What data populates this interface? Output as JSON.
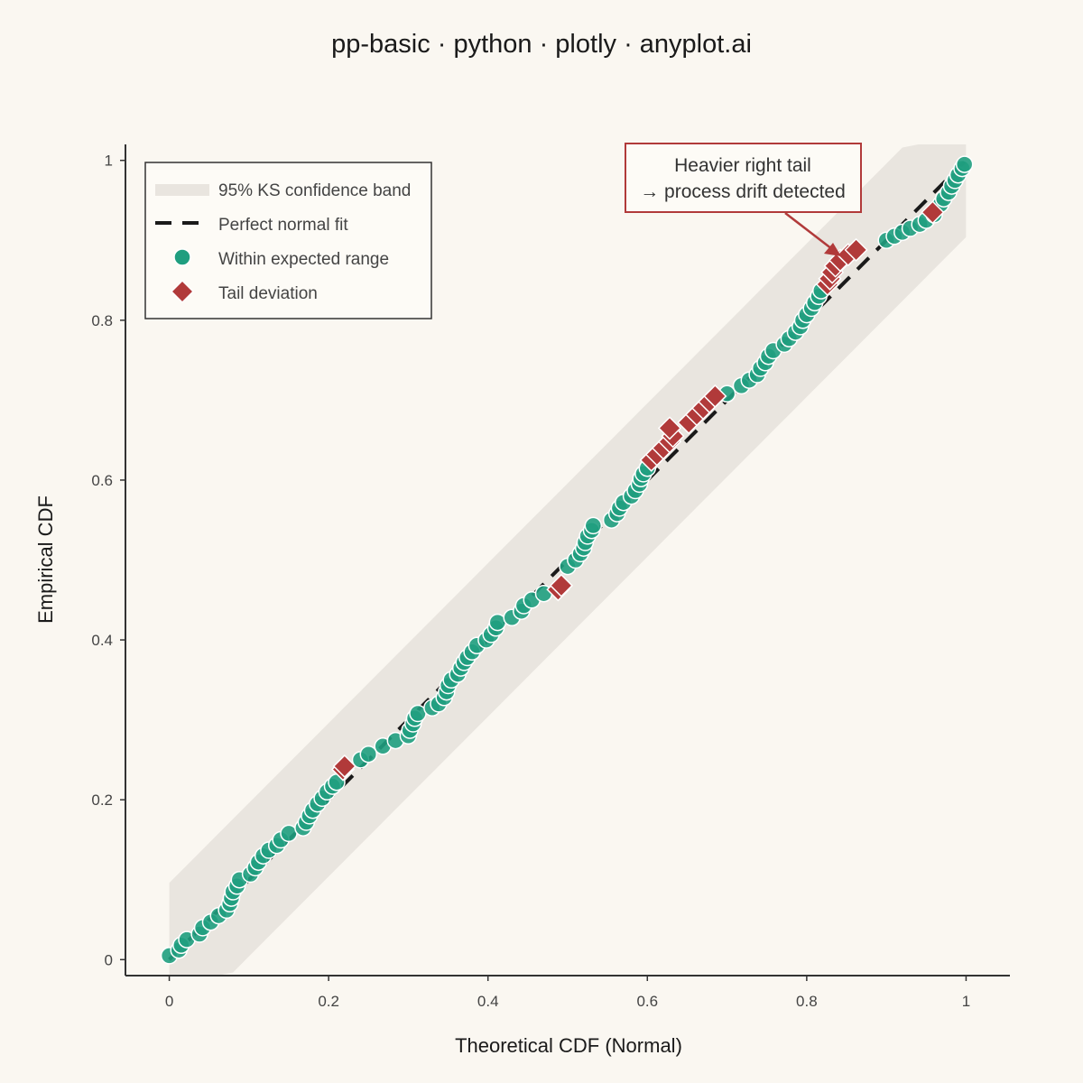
{
  "title": "pp-basic · python · plotly · anyplot.ai",
  "colors": {
    "background": "#faf7f1",
    "band": "#e9e5df",
    "within": "#1f9e7f",
    "tail": "#b13a3a",
    "fit_line": "#1a1a1a",
    "axis": "#333333"
  },
  "legend": {
    "band_label": "95% KS confidence band",
    "fit_label": "Perfect normal fit",
    "within_label": "Within expected range",
    "tail_label": "Tail deviation",
    "placement": "top-left"
  },
  "annotation": {
    "line1": "Heavier right tail",
    "line2": "→ process drift detected"
  },
  "chart_data": {
    "type": "scatter",
    "title": "pp-basic · python · plotly · anyplot.ai",
    "xlabel": "Theoretical CDF (Normal)",
    "ylabel": "Empirical CDF",
    "xlim": [
      -0.055,
      1.055
    ],
    "ylim": [
      -0.02,
      1.02
    ],
    "x_ticks": [
      0,
      0.2,
      0.4,
      0.6,
      0.8,
      1
    ],
    "y_ticks": [
      0,
      0.2,
      0.4,
      0.6,
      0.8,
      1
    ],
    "x_tick_labels": [
      "0",
      "0.2",
      "0.4",
      "0.6",
      "0.8",
      "1"
    ],
    "y_tick_labels": [
      "0",
      "0.2",
      "0.4",
      "0.6",
      "0.8",
      "1"
    ],
    "grid": false,
    "ks_band_halfwidth": 0.096,
    "reference_line": [
      [
        0,
        0
      ],
      [
        1,
        1
      ]
    ],
    "series": [
      {
        "name": "Within expected range",
        "marker": "circle",
        "points": [
          [
            0.0,
            0.005
          ],
          [
            0.012,
            0.012
          ],
          [
            0.015,
            0.018
          ],
          [
            0.022,
            0.025
          ],
          [
            0.038,
            0.032
          ],
          [
            0.042,
            0.04
          ],
          [
            0.052,
            0.047
          ],
          [
            0.062,
            0.055
          ],
          [
            0.072,
            0.062
          ],
          [
            0.076,
            0.07
          ],
          [
            0.078,
            0.077
          ],
          [
            0.08,
            0.085
          ],
          [
            0.085,
            0.092
          ],
          [
            0.088,
            0.1
          ],
          [
            0.102,
            0.107
          ],
          [
            0.108,
            0.115
          ],
          [
            0.112,
            0.122
          ],
          [
            0.118,
            0.13
          ],
          [
            0.125,
            0.137
          ],
          [
            0.135,
            0.143
          ],
          [
            0.14,
            0.15
          ],
          [
            0.15,
            0.158
          ],
          [
            0.168,
            0.165
          ],
          [
            0.172,
            0.172
          ],
          [
            0.176,
            0.18
          ],
          [
            0.18,
            0.187
          ],
          [
            0.186,
            0.195
          ],
          [
            0.192,
            0.202
          ],
          [
            0.198,
            0.21
          ],
          [
            0.205,
            0.217
          ],
          [
            0.21,
            0.222
          ],
          [
            0.24,
            0.25
          ],
          [
            0.25,
            0.257
          ],
          [
            0.268,
            0.267
          ],
          [
            0.284,
            0.274
          ],
          [
            0.3,
            0.28
          ],
          [
            0.302,
            0.287
          ],
          [
            0.306,
            0.295
          ],
          [
            0.308,
            0.302
          ],
          [
            0.312,
            0.308
          ],
          [
            0.33,
            0.315
          ],
          [
            0.338,
            0.32
          ],
          [
            0.345,
            0.328
          ],
          [
            0.348,
            0.335
          ],
          [
            0.35,
            0.343
          ],
          [
            0.354,
            0.35
          ],
          [
            0.362,
            0.357
          ],
          [
            0.366,
            0.365
          ],
          [
            0.37,
            0.372
          ],
          [
            0.374,
            0.378
          ],
          [
            0.38,
            0.385
          ],
          [
            0.386,
            0.393
          ],
          [
            0.398,
            0.4
          ],
          [
            0.404,
            0.407
          ],
          [
            0.41,
            0.415
          ],
          [
            0.412,
            0.422
          ],
          [
            0.43,
            0.428
          ],
          [
            0.442,
            0.436
          ],
          [
            0.445,
            0.443
          ],
          [
            0.455,
            0.45
          ],
          [
            0.47,
            0.458
          ],
          [
            0.5,
            0.492
          ],
          [
            0.51,
            0.5
          ],
          [
            0.516,
            0.508
          ],
          [
            0.52,
            0.515
          ],
          [
            0.522,
            0.522
          ],
          [
            0.525,
            0.53
          ],
          [
            0.53,
            0.537
          ],
          [
            0.532,
            0.543
          ],
          [
            0.555,
            0.55
          ],
          [
            0.562,
            0.558
          ],
          [
            0.565,
            0.565
          ],
          [
            0.57,
            0.572
          ],
          [
            0.58,
            0.58
          ],
          [
            0.585,
            0.587
          ],
          [
            0.59,
            0.595
          ],
          [
            0.592,
            0.602
          ],
          [
            0.595,
            0.608
          ],
          [
            0.6,
            0.615
          ],
          [
            0.7,
            0.708
          ],
          [
            0.718,
            0.718
          ],
          [
            0.728,
            0.725
          ],
          [
            0.738,
            0.732
          ],
          [
            0.742,
            0.74
          ],
          [
            0.748,
            0.747
          ],
          [
            0.752,
            0.755
          ],
          [
            0.758,
            0.762
          ],
          [
            0.772,
            0.77
          ],
          [
            0.778,
            0.777
          ],
          [
            0.786,
            0.785
          ],
          [
            0.792,
            0.792
          ],
          [
            0.795,
            0.8
          ],
          [
            0.8,
            0.807
          ],
          [
            0.806,
            0.815
          ],
          [
            0.81,
            0.822
          ],
          [
            0.815,
            0.83
          ],
          [
            0.818,
            0.837
          ],
          [
            0.9,
            0.9
          ],
          [
            0.91,
            0.905
          ],
          [
            0.92,
            0.91
          ],
          [
            0.93,
            0.915
          ],
          [
            0.942,
            0.92
          ],
          [
            0.95,
            0.925
          ],
          [
            0.96,
            0.932
          ],
          [
            0.968,
            0.945
          ],
          [
            0.972,
            0.952
          ],
          [
            0.978,
            0.96
          ],
          [
            0.982,
            0.968
          ],
          [
            0.986,
            0.975
          ],
          [
            0.99,
            0.982
          ],
          [
            0.995,
            0.99
          ],
          [
            0.998,
            0.995
          ]
        ]
      },
      {
        "name": "Tail deviation",
        "marker": "diamond",
        "points": [
          [
            0.218,
            0.238
          ],
          [
            0.22,
            0.242
          ],
          [
            0.488,
            0.463
          ],
          [
            0.492,
            0.468
          ],
          [
            0.605,
            0.625
          ],
          [
            0.612,
            0.632
          ],
          [
            0.62,
            0.64
          ],
          [
            0.628,
            0.648
          ],
          [
            0.632,
            0.655
          ],
          [
            0.628,
            0.665
          ],
          [
            0.652,
            0.672
          ],
          [
            0.662,
            0.682
          ],
          [
            0.67,
            0.69
          ],
          [
            0.678,
            0.698
          ],
          [
            0.685,
            0.705
          ],
          [
            0.826,
            0.845
          ],
          [
            0.829,
            0.852
          ],
          [
            0.832,
            0.86
          ],
          [
            0.836,
            0.868
          ],
          [
            0.842,
            0.875
          ],
          [
            0.852,
            0.882
          ],
          [
            0.862,
            0.888
          ],
          [
            0.958,
            0.935
          ]
        ]
      }
    ]
  }
}
